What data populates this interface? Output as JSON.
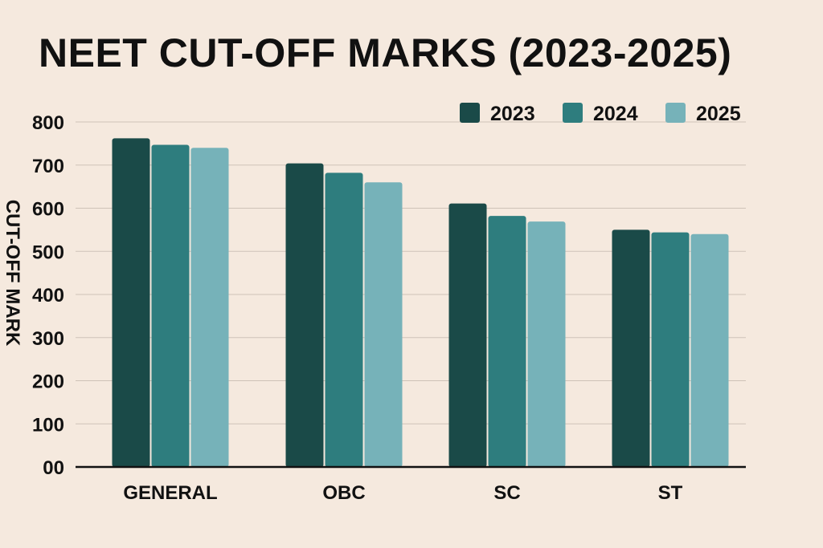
{
  "chart_data": {
    "type": "bar",
    "title": "NEET CUT-OFF MARKS (2023-2025)",
    "ylabel": "CUT-OFF MARK",
    "xlabel": "",
    "categories": [
      "GENERAL",
      "OBC",
      "SC",
      "ST"
    ],
    "series": [
      {
        "name": "2023",
        "color": "#1a4a48",
        "values": [
          762,
          704,
          611,
          550
        ]
      },
      {
        "name": "2024",
        "color": "#2e7d7e",
        "values": [
          747,
          682,
          582,
          544
        ]
      },
      {
        "name": "2025",
        "color": "#76b2b9",
        "values": [
          740,
          660,
          569,
          540
        ]
      }
    ],
    "ylim": [
      0,
      800
    ],
    "yticks": [
      0,
      100,
      200,
      300,
      400,
      500,
      600,
      700,
      800
    ],
    "ytick_labels": [
      "00",
      "100",
      "200",
      "300",
      "400",
      "500",
      "600",
      "700",
      "800"
    ],
    "grid": true,
    "legend_position": "top-right",
    "colors": {
      "background": "#f5e9de",
      "gridline": "#cfc3b8",
      "axis": "#111111",
      "text": "#111111"
    }
  }
}
